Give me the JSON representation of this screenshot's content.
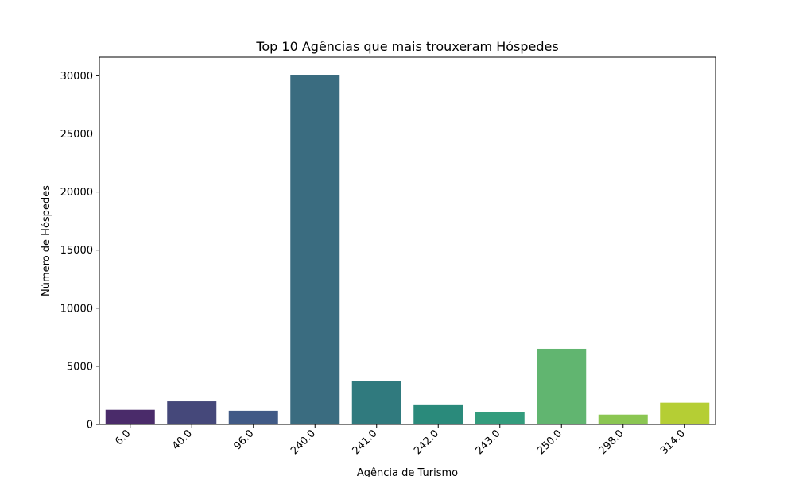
{
  "chart_data": {
    "type": "bar",
    "title": "Top 10 Agências que mais trouxeram Hóspedes",
    "xlabel": "Agência de Turismo",
    "ylabel": "Número de Hóspedes",
    "categories": [
      "6.0",
      "40.0",
      "96.0",
      "240.0",
      "241.0",
      "242.0",
      "243.0",
      "250.0",
      "298.0",
      "314.0"
    ],
    "values": [
      1250,
      1980,
      1170,
      30080,
      3700,
      1720,
      1030,
      6500,
      840,
      1870
    ],
    "ylim": [
      0,
      31600
    ],
    "yticks": [
      0,
      5000,
      10000,
      15000,
      20000,
      25000,
      30000
    ],
    "grid": false,
    "colors": [
      "#4a2b6a",
      "#45487a",
      "#415a86",
      "#3a6c80",
      "#307a7e",
      "#2a8a7b",
      "#339c7d",
      "#61b570",
      "#8bc652",
      "#b5ce34"
    ]
  }
}
